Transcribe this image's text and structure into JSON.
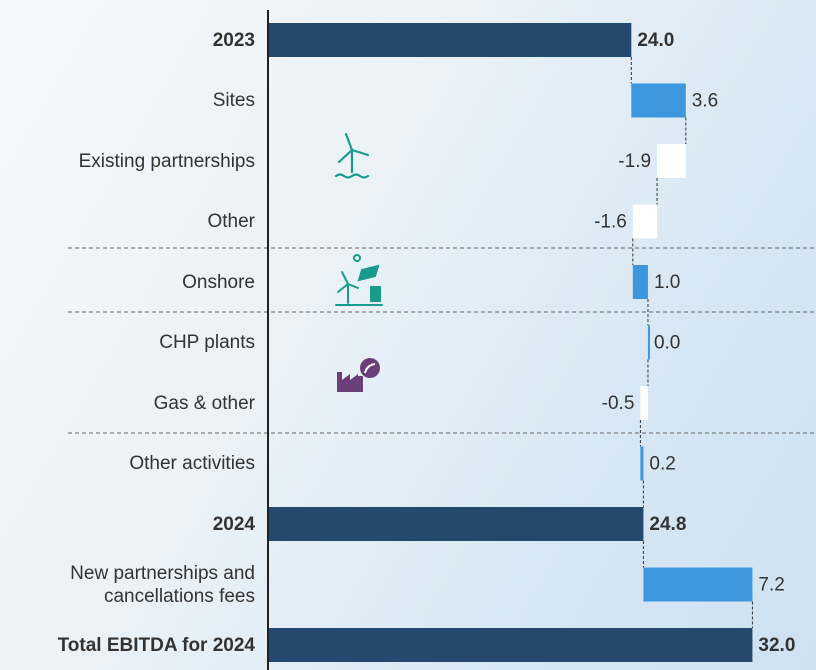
{
  "chart_data": {
    "type": "waterfall",
    "orientation": "horizontal",
    "categories": [
      "2023",
      "Sites",
      "Existing partnerships",
      "Other",
      "Onshore",
      "CHP plants",
      "Gas & other",
      "Other activities",
      "2024",
      "New partnerships and cancellations fees",
      "Total EBITDA for 2024"
    ],
    "values": [
      24.0,
      3.6,
      -1.9,
      -1.6,
      1.0,
      0.0,
      -0.5,
      0.2,
      24.8,
      7.2,
      32.0
    ],
    "value_labels": [
      "24.0",
      "3.6",
      "-1.9",
      "-1.6",
      "1.0",
      "0.0",
      "-0.5",
      "0.2",
      "24.8",
      "7.2",
      "32.0"
    ],
    "totals": [
      true,
      false,
      false,
      false,
      false,
      false,
      false,
      false,
      true,
      false,
      true
    ],
    "total_color": "#24486e",
    "increase_color": "#3d97de",
    "decrease_color": "#ffffff",
    "xlim": [
      0,
      36.2
    ]
  }
}
